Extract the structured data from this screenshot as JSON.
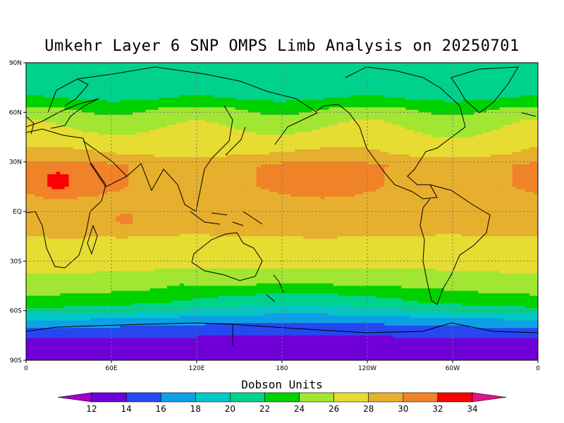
{
  "title": "Umkehr Layer 6 SNP OMPS Limb Analysis on 20250701",
  "colorbar": {
    "title": "Dobson Units",
    "levels": [
      12,
      14,
      16,
      18,
      20,
      22,
      24,
      26,
      28,
      30,
      32,
      34
    ],
    "below_color": "#a000c8",
    "above_color": "#e0148c",
    "colors": [
      "#7000d8",
      "#2648f0",
      "#0ea0e6",
      "#00c8c8",
      "#00d28c",
      "#00d200",
      "#a0e632",
      "#e6dc32",
      "#e6af2d",
      "#f08228",
      "#fa0000"
    ]
  },
  "chart_data": {
    "type": "heatmap",
    "xlabel": "",
    "ylabel": "",
    "x_ticks": [
      "0",
      "60E",
      "120E",
      "180",
      "120W",
      "60W",
      "0"
    ],
    "y_ticks": [
      "90N",
      "60N",
      "30N",
      "EQ",
      "30S",
      "60S",
      "90S"
    ],
    "xlim": [
      0,
      360
    ],
    "ylim": [
      -90,
      90
    ],
    "grid": true,
    "zonal_profile": {
      "lat": [
        90,
        80,
        75,
        68,
        62,
        57,
        50,
        43,
        35,
        28,
        15,
        5,
        -5,
        -15,
        -28,
        -35,
        -43,
        -50,
        -55,
        -60,
        -66,
        -72,
        -80,
        -90
      ],
      "du": [
        21,
        21,
        21,
        22,
        24,
        25,
        26,
        27,
        28,
        30,
        30,
        29,
        29,
        28,
        27,
        26,
        25,
        23,
        22,
        20,
        17,
        15,
        13,
        13
      ]
    },
    "features": [
      {
        "lon": 22,
        "lat": 18,
        "du": 32.5
      },
      {
        "lon": 175,
        "lat": -5,
        "du": 28.5
      },
      {
        "lon": 108,
        "lat": -42,
        "du": 24.5
      },
      {
        "lon": 70,
        "lat": -5,
        "du": 30.5
      }
    ]
  }
}
